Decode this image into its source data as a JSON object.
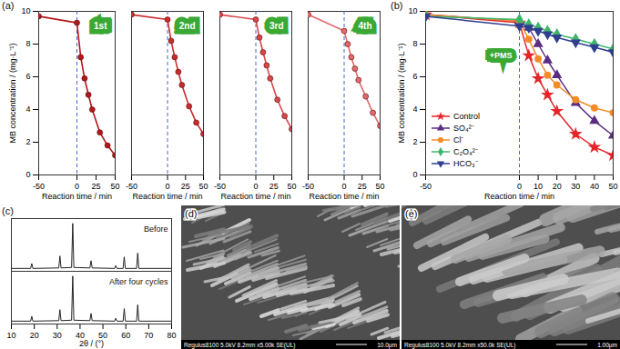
{
  "chart_data": [
    {
      "type": "line",
      "title": "(a)",
      "x_label": "Reaction time / min",
      "y_label": "MB concentration / (mg·L⁻¹)",
      "x": [
        -50,
        0,
        5,
        10,
        15,
        20,
        30,
        40,
        50
      ],
      "series": [
        {
          "name": "1st",
          "color": "#b3181d",
          "marker": "circle",
          "values": [
            9.7,
            9.3,
            7.2,
            5.9,
            4.9,
            4.0,
            2.6,
            1.8,
            1.2
          ]
        },
        {
          "name": "2nd",
          "color": "#cc2b2e",
          "marker": "circle",
          "values": [
            9.8,
            9.5,
            8.2,
            7.2,
            6.3,
            5.5,
            4.2,
            3.2,
            2.5
          ]
        },
        {
          "name": "3rd",
          "color": "#d9474a",
          "marker": "circle",
          "values": [
            9.8,
            9.5,
            8.4,
            7.5,
            6.7,
            5.9,
            4.6,
            3.6,
            2.8
          ]
        },
        {
          "name": "4th",
          "color": "#e36a6c",
          "marker": "circle",
          "values": [
            9.8,
            8.8,
            8.0,
            7.2,
            6.5,
            5.8,
            4.8,
            3.8,
            3.0
          ]
        }
      ],
      "xlim": [
        -50,
        50
      ],
      "xticks": [
        -50,
        0,
        25,
        50
      ],
      "ylim": [
        0,
        10
      ],
      "yticks": [
        0,
        2,
        4,
        6,
        8,
        10
      ],
      "vline": 0
    },
    {
      "type": "line",
      "title": "(b)",
      "x_label": "Reaction time / min",
      "y_label": "MB concentration / (mg·L⁻¹)",
      "annotation": "+PMS",
      "vline": 0,
      "legend": "lower left",
      "x": [
        -50,
        0,
        5,
        10,
        15,
        20,
        30,
        40,
        50
      ],
      "series": [
        {
          "name": "Control",
          "color": "#e4252a",
          "marker": "star",
          "values": [
            9.8,
            9.3,
            7.3,
            5.9,
            4.9,
            3.9,
            2.5,
            1.7,
            1.2
          ]
        },
        {
          "name": "SO₄²⁻",
          "color": "#5a2d82",
          "marker": "triangle",
          "values": [
            9.8,
            9.4,
            9.0,
            8.0,
            7.0,
            6.1,
            4.4,
            3.3,
            2.4
          ]
        },
        {
          "name": "Cl⁻",
          "color": "#f28c28",
          "marker": "circle",
          "values": [
            9.8,
            9.4,
            8.3,
            7.1,
            6.1,
            5.5,
            4.6,
            4.1,
            3.8
          ]
        },
        {
          "name": "C₂O₄²⁻",
          "color": "#3cb56a",
          "marker": "diamond",
          "values": [
            9.7,
            9.5,
            9.2,
            9.0,
            8.8,
            8.6,
            8.3,
            8.0,
            7.7
          ]
        },
        {
          "name": "HCO₃⁻",
          "color": "#2e3f8f",
          "marker": "triangle-down",
          "values": [
            9.7,
            9.1,
            9.0,
            8.8,
            8.6,
            8.4,
            8.1,
            7.8,
            7.5
          ]
        }
      ],
      "xlim": [
        -50,
        50
      ],
      "xticks": [
        -50,
        0,
        10,
        20,
        30,
        40,
        50
      ],
      "ylim": [
        0,
        10
      ],
      "yticks": [
        0,
        2,
        4,
        6,
        8,
        10
      ]
    },
    {
      "type": "line",
      "title": "(c)",
      "x_label": "2θ / (°)",
      "tick_labels": "x",
      "x": [
        10,
        18.4,
        18.9,
        19.4,
        30.7,
        31.2,
        31.7,
        36.3,
        36.8,
        37.3,
        44.3,
        44.8,
        45.3,
        55.1,
        55.6,
        56.1,
        58.8,
        59.3,
        59.8,
        64.7,
        65.2,
        65.7,
        80
      ],
      "series": [
        {
          "name": "Before",
          "color": "#222222",
          "values": [
            6,
            6,
            16,
            6,
            7,
            32,
            7,
            8,
            100,
            8,
            7,
            22,
            7,
            6,
            12,
            6,
            6,
            30,
            6,
            6,
            38,
            6,
            6
          ]
        },
        {
          "name": "After four cycles",
          "color": "#222222",
          "values": [
            6,
            6,
            16,
            6,
            7,
            30,
            7,
            8,
            100,
            8,
            7,
            22,
            7,
            6,
            12,
            6,
            6,
            32,
            6,
            6,
            40,
            6,
            6
          ]
        }
      ],
      "xlim": [
        10,
        80
      ],
      "xticks": [
        10,
        20,
        30,
        40,
        50,
        60,
        70,
        80
      ],
      "ylim": [
        0,
        110
      ],
      "yticks": []
    },
    {
      "type": "image",
      "title": "(d)",
      "caption": "Regulus8100 5.0kV 8.2mm x5.00k SE(UL)",
      "scale_bar": "10.0μm"
    },
    {
      "type": "image",
      "title": "(e)",
      "caption": "Regulus8100 5.0kV 8.2mm x50.0k SE(UL)",
      "scale_bar": "1.00μm"
    }
  ]
}
